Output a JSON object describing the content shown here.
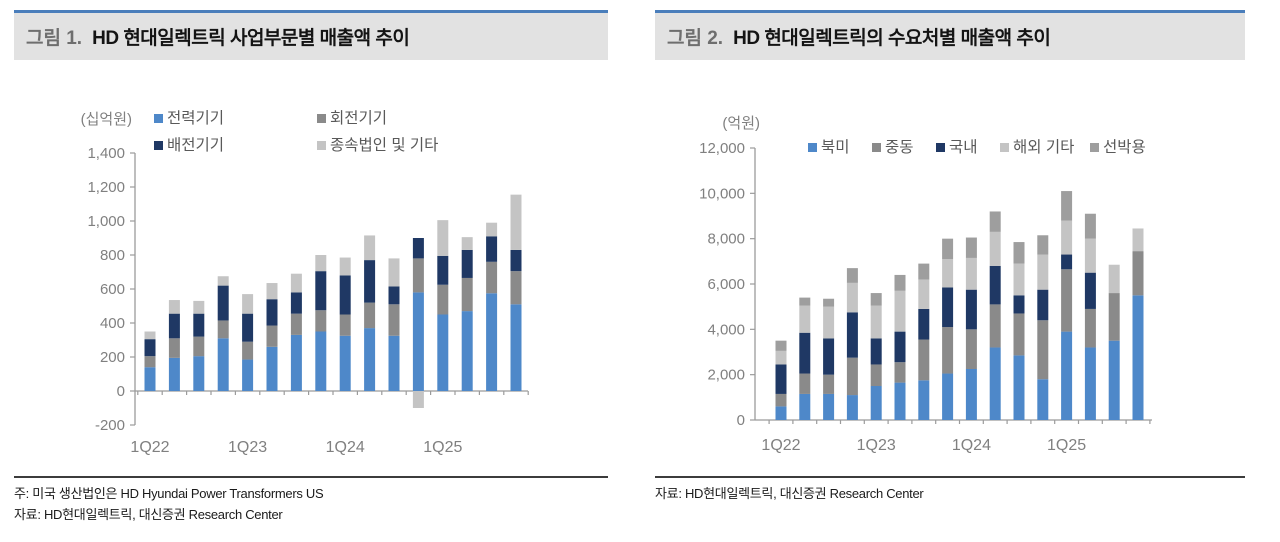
{
  "panels": [
    {
      "figure_label": "그림 1.",
      "title": "HD 현대일렉트릭 사업부문별 매출액 추이",
      "unit_label": "(십억원)",
      "notes": [
        "주: 미국 생산법인은 HD Hyundai Power Transformers US",
        "자료: HD현대일렉트릭, 대신증권 Research Center"
      ]
    },
    {
      "figure_label": "그림 2.",
      "title": "HD 현대일렉트릭의 수요처별 매출액 추이",
      "unit_label": "(억원)",
      "notes": [
        "자료: HD현대일렉트릭, 대신증권 Research Center"
      ]
    }
  ],
  "chart_data": [
    {
      "type": "bar",
      "stacked": true,
      "title": "HD 현대일렉트릭 사업부문별 매출액 추이",
      "unit": "십억원",
      "ylabel": "(십억원)",
      "ylim": [
        -200,
        1400
      ],
      "y_step": 200,
      "grid": false,
      "legend_position": "top",
      "x_label_every": 4,
      "categories": [
        "1Q22",
        "2Q22",
        "3Q22",
        "4Q22",
        "1Q23",
        "2Q23",
        "3Q23",
        "4Q23",
        "1Q24",
        "2Q24",
        "3Q24",
        "4Q24",
        "1Q25",
        "2Q25",
        "3Q25",
        "4Q25"
      ],
      "series": [
        {
          "name": "전력기기",
          "color": "#4E88C9",
          "values": [
            140,
            195,
            205,
            310,
            185,
            260,
            330,
            350,
            325,
            370,
            325,
            580,
            450,
            470,
            575,
            510
          ]
        },
        {
          "name": "회전기기",
          "color": "#8A8A8A",
          "values": [
            65,
            115,
            115,
            105,
            105,
            125,
            125,
            125,
            125,
            150,
            185,
            200,
            175,
            195,
            185,
            195
          ]
        },
        {
          "name": "배전기기",
          "color": "#1F3864",
          "values": [
            100,
            145,
            135,
            205,
            165,
            155,
            125,
            230,
            230,
            250,
            105,
            120,
            170,
            165,
            150,
            125
          ]
        },
        {
          "name": "종속법인 및 기타",
          "color": "#C4C4C4",
          "values": [
            45,
            80,
            75,
            55,
            115,
            95,
            110,
            95,
            105,
            145,
            165,
            -100,
            210,
            75,
            80,
            325
          ]
        }
      ]
    },
    {
      "type": "bar",
      "stacked": true,
      "title": "HD 현대일렉트릭의 수요처별 매출액 추이",
      "unit": "억원",
      "ylabel": "(억원)",
      "ylim": [
        0,
        12000
      ],
      "y_step": 2000,
      "grid": false,
      "legend_position": "top",
      "x_label_every": 4,
      "categories": [
        "1Q22",
        "2Q22",
        "3Q22",
        "4Q22",
        "1Q23",
        "2Q23",
        "3Q23",
        "4Q23",
        "1Q24",
        "2Q24",
        "3Q24",
        "4Q24",
        "1Q25",
        "2Q25",
        "3Q25",
        "4Q25"
      ],
      "series": [
        {
          "name": "북미",
          "color": "#4E88C9",
          "values": [
            600,
            1150,
            1150,
            1100,
            1500,
            1650,
            1750,
            2050,
            2250,
            3200,
            2850,
            1800,
            3900,
            3200,
            3500,
            5500
          ]
        },
        {
          "name": "중동",
          "color": "#8A8A8A",
          "values": [
            550,
            900,
            850,
            1650,
            950,
            900,
            1800,
            2050,
            1750,
            1900,
            1850,
            2600,
            2750,
            1700,
            2100,
            1950
          ]
        },
        {
          "name": "국내",
          "color": "#1F3864",
          "values": [
            1300,
            1800,
            1600,
            2000,
            1150,
            1350,
            1350,
            1750,
            1750,
            1700,
            800,
            1350,
            650,
            1600,
            0,
            0
          ]
        },
        {
          "name": "해외 기타",
          "color": "#C4C4C4",
          "values": [
            600,
            1200,
            1400,
            1300,
            1450,
            1800,
            1300,
            1250,
            1400,
            1500,
            1400,
            1550,
            1500,
            1500,
            1250,
            1000
          ]
        },
        {
          "name": "선박용",
          "color": "#9E9E9E",
          "values": [
            450,
            350,
            350,
            650,
            550,
            700,
            700,
            900,
            900,
            900,
            950,
            850,
            1300,
            1100,
            0,
            0
          ]
        }
      ]
    }
  ],
  "colors": {
    "accent_blue": "#4E88C9",
    "navy": "#1F3864",
    "mid_gray": "#8A8A8A",
    "light_gray": "#C4C4C4",
    "ship_gray": "#9E9E9E",
    "header_bg": "#E2E2E2",
    "header_top_border": "#4A7EBB",
    "axis_color": "#9B9B9B",
    "axis_text": "#808080"
  }
}
